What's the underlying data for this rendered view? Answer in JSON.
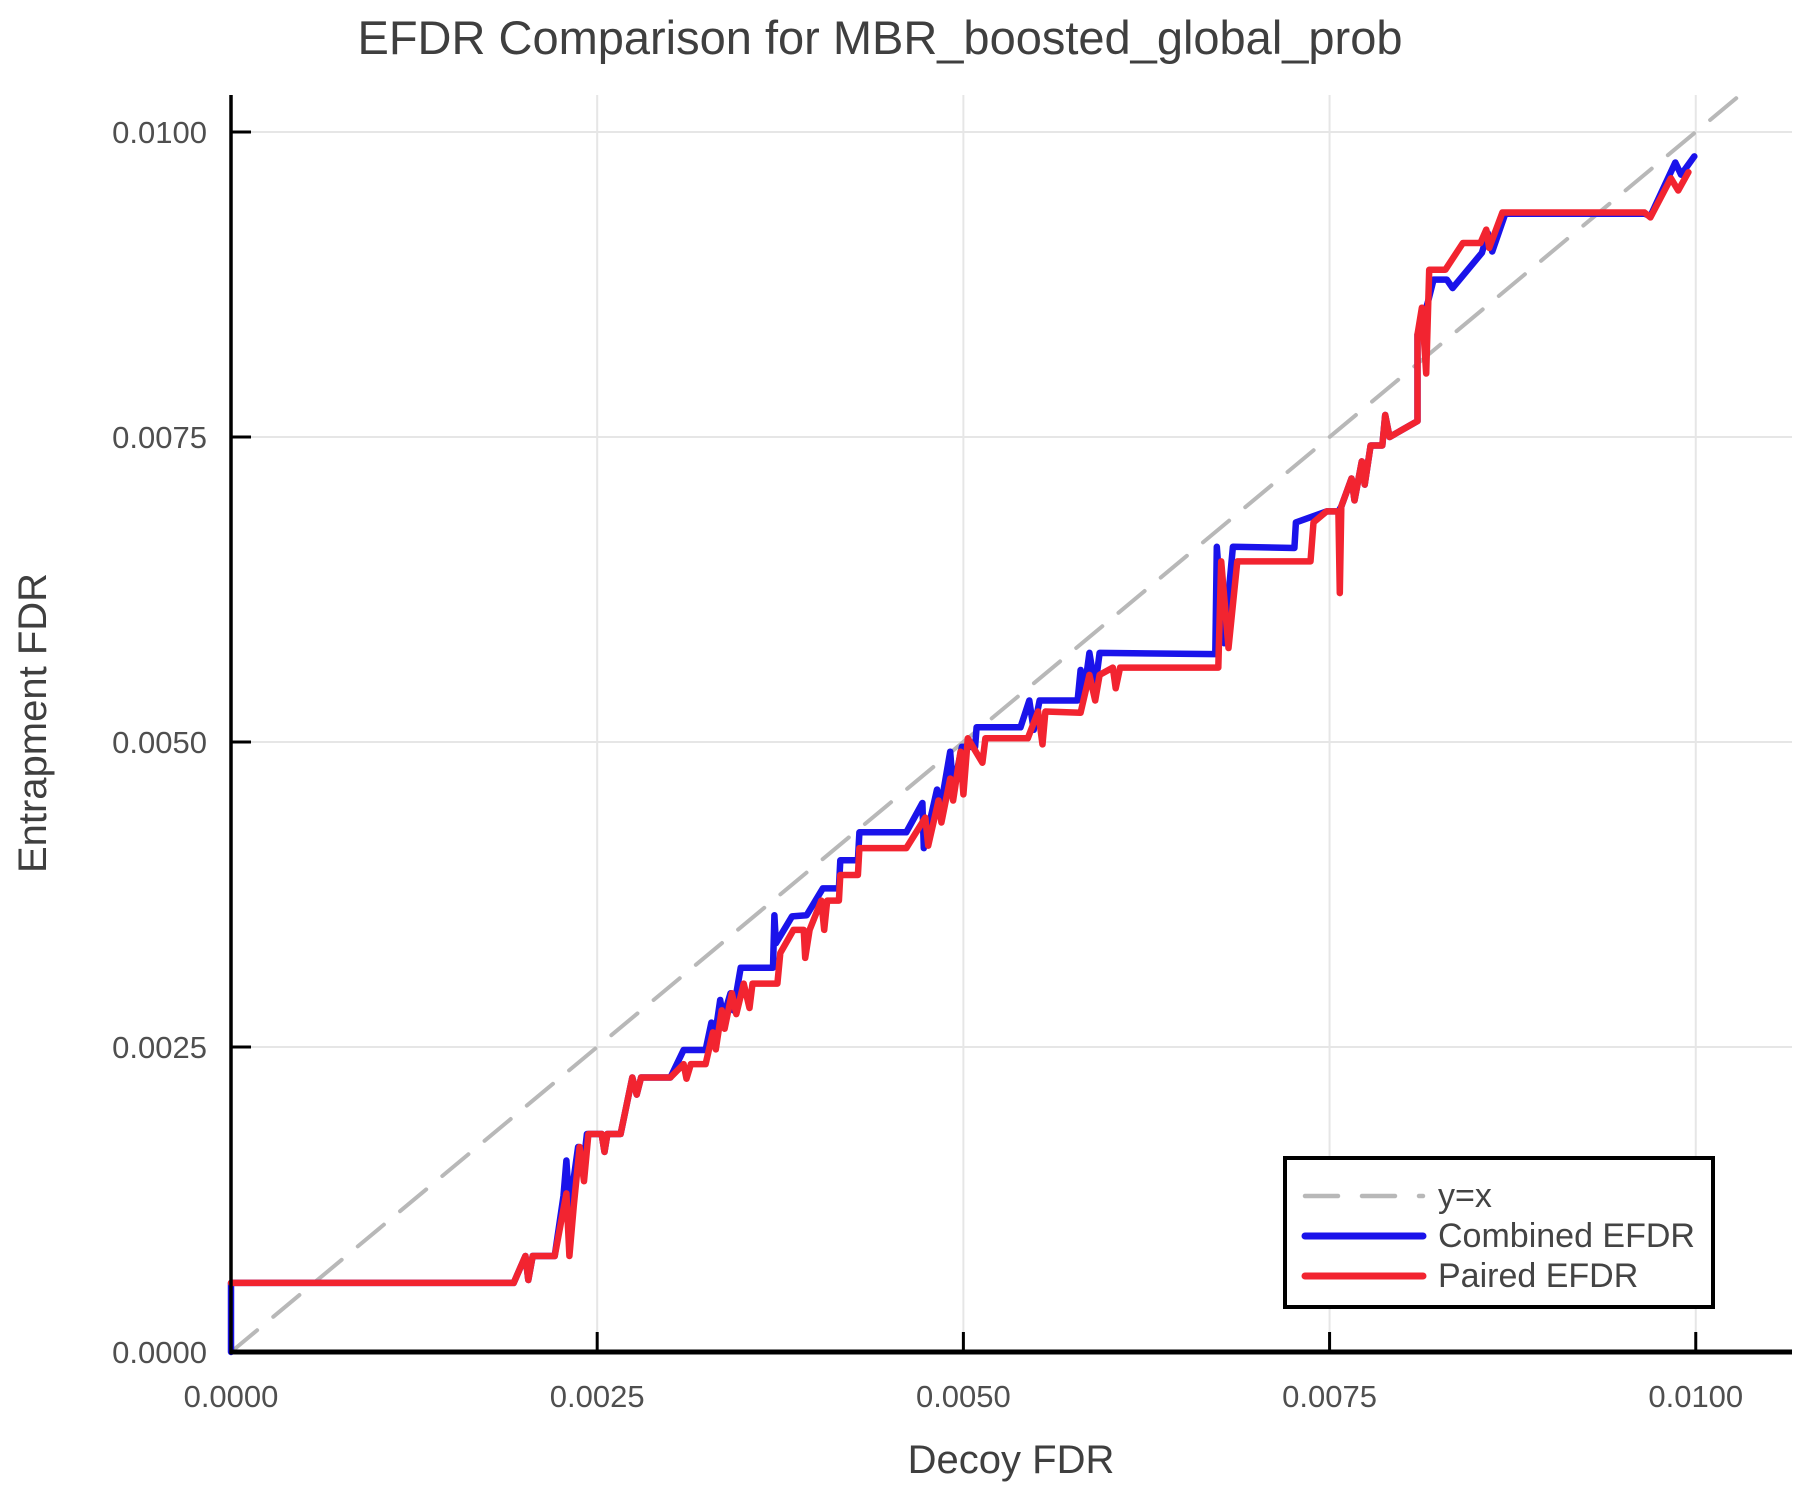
{
  "chart_data": {
    "type": "line",
    "title": "EFDR Comparison for MBR_boosted_global_prob",
    "xlabel": "Decoy FDR",
    "ylabel": "Entrapment FDR",
    "xlim": [
      0,
      0.010657
    ],
    "ylim": [
      0,
      0.010303
    ],
    "grid": true,
    "x_ticks": [
      {
        "value": 0.0,
        "label": "0.0000"
      },
      {
        "value": 0.0025,
        "label": "0.0025"
      },
      {
        "value": 0.005,
        "label": "0.0050"
      },
      {
        "value": 0.0075,
        "label": "0.0075"
      },
      {
        "value": 0.01,
        "label": "0.0100"
      }
    ],
    "y_ticks": [
      {
        "value": 0.0,
        "label": "0.0000"
      },
      {
        "value": 0.0025,
        "label": "0.0025"
      },
      {
        "value": 0.005,
        "label": "0.0050"
      },
      {
        "value": 0.0075,
        "label": "0.0075"
      },
      {
        "value": 0.01,
        "label": "0.0100"
      }
    ],
    "colors": {
      "reference": "#b8b8b8",
      "combined": "#1a13ea",
      "paired": "#f22430",
      "grid": "#e6e6e6",
      "spine": "#000000",
      "tick_text": "#4f4f4f",
      "label_text": "#3f3f3f"
    },
    "legend": {
      "position": "bottom-right",
      "entries": [
        {
          "label": "y=x",
          "color": "#b8b8b8",
          "dashed": true
        },
        {
          "label": "Combined EFDR",
          "color": "#1a13ea",
          "dashed": false
        },
        {
          "label": "Paired EFDR",
          "color": "#f22430",
          "dashed": false
        }
      ]
    },
    "series": [
      {
        "name": "y=x",
        "role": "reference",
        "color": "#b8b8b8",
        "dashed": true,
        "width": 4,
        "points": [
          [
            0,
            0
          ],
          [
            0.010303,
            0.010303
          ]
        ]
      },
      {
        "name": "Combined EFDR",
        "role": "combined",
        "color": "#1a13ea",
        "dashed": false,
        "width": 6.5,
        "points": [
          [
            0,
            0
          ],
          [
            0,
            0.000566
          ],
          [
            0.00193,
            0.000566
          ],
          [
            0.00201,
            0.000787
          ],
          [
            0.00203,
            0.00059
          ],
          [
            0.00206,
            0.000787
          ],
          [
            0.00221,
            0.000787
          ],
          [
            0.00227,
            0.00128
          ],
          [
            0.00229,
            0.00157
          ],
          [
            0.00231,
            0.00117
          ],
          [
            0.00237,
            0.00168
          ],
          [
            0.0024,
            0.00146
          ],
          [
            0.00243,
            0.001787
          ],
          [
            0.00253,
            0.001787
          ],
          [
            0.00255,
            0.00164
          ],
          [
            0.00257,
            0.001787
          ],
          [
            0.00266,
            0.001787
          ],
          [
            0.00274,
            0.00225
          ],
          [
            0.00277,
            0.00211
          ],
          [
            0.0028,
            0.00225
          ],
          [
            0.003,
            0.00225
          ],
          [
            0.00309,
            0.002475
          ],
          [
            0.00324,
            0.002475
          ],
          [
            0.00328,
            0.0027
          ],
          [
            0.0033,
            0.00256
          ],
          [
            0.00334,
            0.002885
          ],
          [
            0.00336,
            0.00274
          ],
          [
            0.00341,
            0.00294
          ],
          [
            0.00343,
            0.0028
          ],
          [
            0.00348,
            0.00315
          ],
          [
            0.0037,
            0.00315
          ],
          [
            0.00371,
            0.00358
          ],
          [
            0.00372,
            0.00335
          ],
          [
            0.00383,
            0.00357
          ],
          [
            0.00393,
            0.00358
          ],
          [
            0.00404,
            0.0038
          ],
          [
            0.00415,
            0.0038
          ],
          [
            0.00416,
            0.00403
          ],
          [
            0.00428,
            0.00403
          ],
          [
            0.00429,
            0.00426
          ],
          [
            0.00461,
            0.00426
          ],
          [
            0.00472,
            0.0045
          ],
          [
            0.00473,
            0.00413
          ],
          [
            0.00482,
            0.00461
          ],
          [
            0.00484,
            0.00443
          ],
          [
            0.00491,
            0.00492
          ],
          [
            0.00493,
            0.00461
          ],
          [
            0.00499,
            0.00496
          ],
          [
            0.00508,
            0.00496
          ],
          [
            0.00509,
            0.00512
          ],
          [
            0.00539,
            0.00512
          ],
          [
            0.00545,
            0.00534
          ],
          [
            0.00548,
            0.0051
          ],
          [
            0.00552,
            0.00534
          ],
          [
            0.00578,
            0.00534
          ],
          [
            0.0058,
            0.00559
          ],
          [
            0.00582,
            0.00537
          ],
          [
            0.00586,
            0.00573
          ],
          [
            0.0059,
            0.00545
          ],
          [
            0.00593,
            0.00573
          ],
          [
            0.00672,
            0.00572
          ],
          [
            0.00673,
            0.0066
          ],
          [
            0.00678,
            0.00581
          ],
          [
            0.00684,
            0.0066
          ],
          [
            0.00726,
            0.00659
          ],
          [
            0.00727,
            0.0068
          ],
          [
            0.00748,
            0.00689
          ],
          [
            0.00756,
            0.00689
          ],
          [
            0.00758,
            0.00693
          ],
          [
            0.00765,
            0.00716
          ],
          [
            0.00767,
            0.00698
          ],
          [
            0.00772,
            0.0073
          ],
          [
            0.00774,
            0.00711
          ],
          [
            0.00778,
            0.00743
          ],
          [
            0.00786,
            0.00743
          ],
          [
            0.00788,
            0.00768
          ],
          [
            0.00791,
            0.0075
          ],
          [
            0.0081,
            0.00763
          ],
          [
            0.0081,
            0.00834
          ],
          [
            0.00817,
            0.0086
          ],
          [
            0.00821,
            0.00879
          ],
          [
            0.0083,
            0.00879
          ],
          [
            0.00834,
            0.00872
          ],
          [
            0.00854,
            0.00901
          ],
          [
            0.00858,
            0.00917
          ],
          [
            0.00861,
            0.00902
          ],
          [
            0.0087,
            0.00933
          ],
          [
            0.00965,
            0.00933
          ],
          [
            0.00969,
            0.00931
          ],
          [
            0.00986,
            0.00975
          ],
          [
            0.0099,
            0.00965
          ],
          [
            0.00999,
            0.0098
          ]
        ]
      },
      {
        "name": "Paired EFDR",
        "role": "paired",
        "color": "#f22430",
        "dashed": false,
        "width": 6.5,
        "points": [
          [
            0,
            0.000566
          ],
          [
            0.00193,
            0.000566
          ],
          [
            0.00201,
            0.000787
          ],
          [
            0.00203,
            0.00059
          ],
          [
            0.00206,
            0.000787
          ],
          [
            0.00221,
            0.000787
          ],
          [
            0.00229,
            0.0013
          ],
          [
            0.00231,
            0.000787
          ],
          [
            0.00234,
            0.0012
          ],
          [
            0.00238,
            0.00168
          ],
          [
            0.00241,
            0.0014
          ],
          [
            0.00244,
            0.001787
          ],
          [
            0.00253,
            0.001787
          ],
          [
            0.00255,
            0.00164
          ],
          [
            0.00257,
            0.001787
          ],
          [
            0.00266,
            0.001787
          ],
          [
            0.00274,
            0.00225
          ],
          [
            0.00277,
            0.00211
          ],
          [
            0.0028,
            0.00225
          ],
          [
            0.003,
            0.00225
          ],
          [
            0.00309,
            0.00236
          ],
          [
            0.00311,
            0.00224
          ],
          [
            0.00314,
            0.00236
          ],
          [
            0.00324,
            0.00236
          ],
          [
            0.00329,
            0.00262
          ],
          [
            0.00331,
            0.00248
          ],
          [
            0.00335,
            0.0028
          ],
          [
            0.00337,
            0.00265
          ],
          [
            0.00342,
            0.00294
          ],
          [
            0.00345,
            0.00277
          ],
          [
            0.0035,
            0.00302
          ],
          [
            0.00354,
            0.00282
          ],
          [
            0.00356,
            0.00302
          ],
          [
            0.00373,
            0.00302
          ],
          [
            0.00375,
            0.00327
          ],
          [
            0.00384,
            0.00346
          ],
          [
            0.00391,
            0.00346
          ],
          [
            0.00392,
            0.00323
          ],
          [
            0.00395,
            0.00346
          ],
          [
            0.00403,
            0.0037
          ],
          [
            0.00405,
            0.00346
          ],
          [
            0.00407,
            0.0037
          ],
          [
            0.00415,
            0.0037
          ],
          [
            0.00416,
            0.00391
          ],
          [
            0.00428,
            0.00391
          ],
          [
            0.00429,
            0.00413
          ],
          [
            0.00461,
            0.00413
          ],
          [
            0.00474,
            0.00438
          ],
          [
            0.00476,
            0.00415
          ],
          [
            0.00483,
            0.00452
          ],
          [
            0.00485,
            0.00434
          ],
          [
            0.00491,
            0.0047
          ],
          [
            0.00493,
            0.00452
          ],
          [
            0.00498,
            0.00492
          ],
          [
            0.005,
            0.00457
          ],
          [
            0.00503,
            0.00503
          ],
          [
            0.00513,
            0.00483
          ],
          [
            0.00515,
            0.00503
          ],
          [
            0.00544,
            0.00503
          ],
          [
            0.00551,
            0.00525
          ],
          [
            0.00554,
            0.00498
          ],
          [
            0.00556,
            0.00525
          ],
          [
            0.0058,
            0.00524
          ],
          [
            0.00586,
            0.00555
          ],
          [
            0.0059,
            0.00534
          ],
          [
            0.00593,
            0.00555
          ],
          [
            0.00602,
            0.00561
          ],
          [
            0.00604,
            0.00544
          ],
          [
            0.00607,
            0.00561
          ],
          [
            0.00674,
            0.00561
          ],
          [
            0.00676,
            0.00648
          ],
          [
            0.00681,
            0.00577
          ],
          [
            0.00687,
            0.00648
          ],
          [
            0.00737,
            0.00648
          ],
          [
            0.00739,
            0.0068
          ],
          [
            0.00748,
            0.00689
          ],
          [
            0.00756,
            0.00689
          ],
          [
            0.00757,
            0.00622
          ],
          [
            0.00758,
            0.00693
          ],
          [
            0.00765,
            0.00716
          ],
          [
            0.00767,
            0.00698
          ],
          [
            0.00772,
            0.0073
          ],
          [
            0.00774,
            0.00711
          ],
          [
            0.00778,
            0.00743
          ],
          [
            0.00786,
            0.00743
          ],
          [
            0.00788,
            0.00768
          ],
          [
            0.00791,
            0.0075
          ],
          [
            0.0081,
            0.00763
          ],
          [
            0.0081,
            0.00834
          ],
          [
            0.00813,
            0.00856
          ],
          [
            0.00816,
            0.00802
          ],
          [
            0.00818,
            0.00887
          ],
          [
            0.00829,
            0.00887
          ],
          [
            0.00841,
            0.00909
          ],
          [
            0.00853,
            0.00909
          ],
          [
            0.00857,
            0.0092
          ],
          [
            0.00859,
            0.00905
          ],
          [
            0.00868,
            0.00934
          ],
          [
            0.00965,
            0.00934
          ],
          [
            0.00969,
            0.0093
          ],
          [
            0.00983,
            0.00962
          ],
          [
            0.00988,
            0.00952
          ],
          [
            0.00995,
            0.00967
          ]
        ]
      }
    ]
  }
}
